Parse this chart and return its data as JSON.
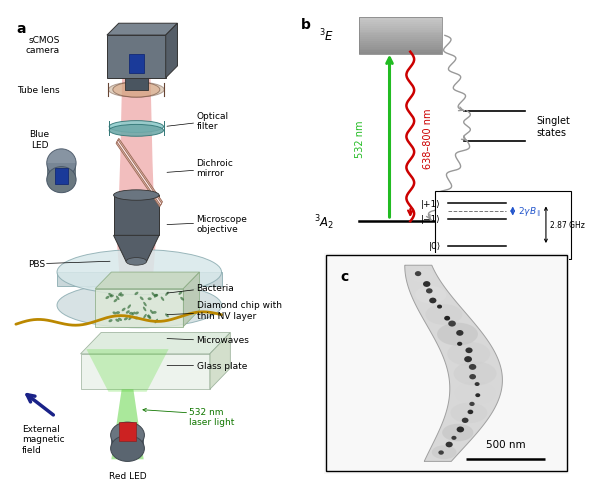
{
  "fig_width": 5.65,
  "fig_height": 4.74,
  "bg_color": "#ffffff",
  "gray_dark": "#596370",
  "gray_med": "#7a8898",
  "gray_light": "#c0ccd8",
  "teal_filter": "#aad8d8",
  "panel_b": {
    "3E_label": "$^3$E",
    "3A2_label": "$^3$A$_2$",
    "singlet_label": "Singlet\nstates",
    "green_label": "532 nm",
    "red_label": "638–800 nm",
    "box_label_p1": "|+1⟩",
    "box_label_m1": "|−1⟩",
    "box_label_0": "|0⟩",
    "ghz_label": "2.87 GHz",
    "2gamma_label": "$2\\gamma B_{\\parallel}$",
    "green_color": "#22bb22",
    "red_color": "#cc0000",
    "gray_color": "#999999",
    "blue_color": "#2255cc"
  },
  "panel_c": {
    "scale_label": "500 nm",
    "bg_color": "#f5f5f5"
  }
}
